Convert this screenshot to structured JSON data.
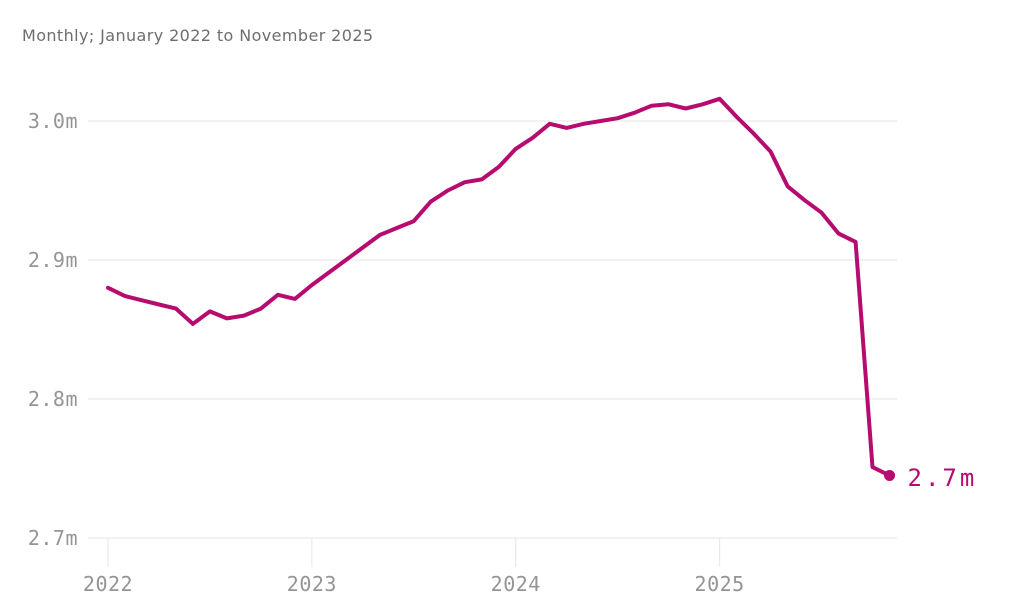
{
  "header": {
    "subtitle": "Monthly; January 2022 to November 2025"
  },
  "chart_data": {
    "type": "line",
    "title": "Monthly; January 2022 to November 2025",
    "xlabel": "",
    "ylabel": "",
    "unit": "millions",
    "grid": "horizontal",
    "legend_position": "none",
    "x": [
      "Jan 2022",
      "Feb 2022",
      "Mar 2022",
      "Apr 2022",
      "May 2022",
      "Jun 2022",
      "Jul 2022",
      "Aug 2022",
      "Sep 2022",
      "Oct 2022",
      "Nov 2022",
      "Dec 2022",
      "Jan 2023",
      "Feb 2023",
      "Mar 2023",
      "Apr 2023",
      "May 2023",
      "Jun 2023",
      "Jul 2023",
      "Aug 2023",
      "Sep 2023",
      "Oct 2023",
      "Nov 2023",
      "Dec 2023",
      "Jan 2024",
      "Feb 2024",
      "Mar 2024",
      "Apr 2024",
      "May 2024",
      "Jun 2024",
      "Jul 2024",
      "Aug 2024",
      "Sep 2024",
      "Oct 2024",
      "Nov 2024",
      "Dec 2024",
      "Jan 2025",
      "Feb 2025",
      "Mar 2025",
      "Apr 2025",
      "May 2025",
      "Jun 2025",
      "Jul 2025",
      "Aug 2025",
      "Sep 2025",
      "Oct 2025",
      "Nov 2025"
    ],
    "values": [
      2.88,
      2.874,
      2.871,
      2.868,
      2.865,
      2.854,
      2.863,
      2.858,
      2.86,
      2.865,
      2.875,
      2.872,
      2.882,
      2.891,
      2.9,
      2.909,
      2.918,
      2.923,
      2.928,
      2.942,
      2.95,
      2.956,
      2.958,
      2.967,
      2.98,
      2.988,
      2.998,
      2.995,
      2.998,
      3.0,
      3.002,
      3.006,
      3.011,
      3.012,
      3.009,
      3.012,
      3.016,
      3.003,
      2.991,
      2.978,
      2.953,
      2.943,
      2.934,
      2.919,
      2.913,
      2.751,
      2.745
    ],
    "ylim": [
      2.7,
      3.05
    ],
    "y_ticks": [
      {
        "value": 3.0,
        "label": "3.0m"
      },
      {
        "value": 2.9,
        "label": "2.9m"
      },
      {
        "value": 2.8,
        "label": "2.8m"
      },
      {
        "value": 2.7,
        "label": "2.7m"
      }
    ],
    "x_ticks": [
      {
        "month_index": 0,
        "label": "2022"
      },
      {
        "month_index": 12,
        "label": "2023"
      },
      {
        "month_index": 24,
        "label": "2024"
      },
      {
        "month_index": 36,
        "label": "2025"
      }
    ],
    "end_point_label": "2.7m",
    "colors": {
      "line": "#b60b6f",
      "end_label": "#b60b6f",
      "grid": "#e6e6e6",
      "axis_labels": "#949494",
      "title": "#6e6e6e"
    }
  }
}
